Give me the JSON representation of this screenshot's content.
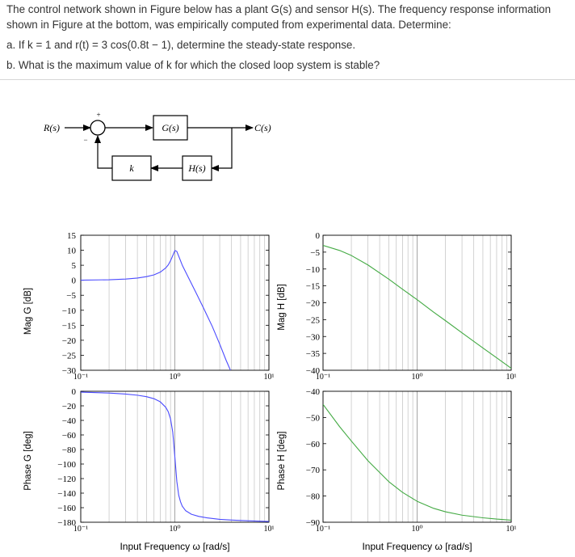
{
  "question": {
    "intro": "The control network shown in Figure below has a plant G(s) and sensor H(s). The frequency response information shown in Figure at the bottom, was empirically computed from experimental data. Determine:",
    "part_a": "a. If k = 1 and r(t) = 3 cos(0.8t − 1), determine the steady-state response.",
    "part_b": "b. What is the maximum value of k for which the closed loop system is stable?"
  },
  "block_diagram": {
    "input_label": "R(s)",
    "output_label": "C(s)",
    "plant_label": "G(s)",
    "sensor_label": "H(s)",
    "gain_label": "k",
    "plus_sign": "+",
    "minus_sign": "−"
  },
  "chart_data": [
    {
      "type": "line",
      "id": "mag-g",
      "ylabel": "Mag G [dB]",
      "xscale": "log",
      "xlim": [
        0.1,
        10
      ],
      "ylim": [
        -30,
        15
      ],
      "yticks": [
        15,
        10,
        5,
        0,
        -5,
        -10,
        -15,
        -20,
        -25,
        -30
      ],
      "xticks": [
        "10⁻¹",
        "10⁰",
        "10¹"
      ],
      "color": "#4b4bff",
      "x": [
        0.1,
        0.2,
        0.3,
        0.4,
        0.5,
        0.6,
        0.7,
        0.8,
        0.85,
        0.9,
        0.95,
        1.0,
        1.05,
        1.1,
        1.2,
        1.4,
        1.7,
        2.0,
        2.5,
        3.0,
        3.5,
        3.9
      ],
      "y": [
        0.04,
        0.17,
        0.4,
        0.73,
        1.2,
        1.8,
        2.7,
        4.1,
        5.1,
        6.5,
        8.2,
        9.9,
        9.6,
        8.0,
        5.0,
        0.8,
        -4.5,
        -9.0,
        -15.4,
        -21.3,
        -26.6,
        -30.0
      ]
    },
    {
      "type": "line",
      "id": "phase-g",
      "ylabel": "Phase G [deg]",
      "xscale": "log",
      "xlim": [
        0.1,
        10
      ],
      "ylim": [
        -180,
        0
      ],
      "yticks": [
        0,
        -20,
        -40,
        -60,
        -80,
        -100,
        -120,
        -140,
        -160,
        -180
      ],
      "xticks": [
        "10⁻¹",
        "10⁰",
        "10¹"
      ],
      "xlabel": "Input Frequency ω [rad/s]",
      "color": "#4b4bff",
      "x": [
        0.1,
        0.2,
        0.3,
        0.4,
        0.5,
        0.6,
        0.7,
        0.8,
        0.85,
        0.9,
        0.95,
        1.0,
        1.05,
        1.1,
        1.15,
        1.2,
        1.3,
        1.5,
        1.8,
        2.2,
        3.0,
        4.0,
        6.0,
        8.0,
        10.0
      ],
      "y": [
        -1.2,
        -2.4,
        -3.8,
        -5.4,
        -7.4,
        -10.2,
        -14.5,
        -22,
        -28,
        -38,
        -56,
        -90,
        -124,
        -143,
        -152,
        -158,
        -164,
        -169,
        -172,
        -174,
        -176,
        -177,
        -178,
        -178.5,
        -179
      ]
    },
    {
      "type": "line",
      "id": "mag-h",
      "ylabel": "Mag H [dB]",
      "xscale": "log",
      "xlim": [
        0.1,
        10
      ],
      "ylim": [
        -40,
        0
      ],
      "yticks": [
        0,
        -5,
        -10,
        -15,
        -20,
        -25,
        -30,
        -35,
        -40
      ],
      "xticks": [
        "10⁻¹",
        "10⁰",
        "10¹"
      ],
      "color": "#44aa44",
      "x": [
        0.1,
        0.15,
        0.2,
        0.3,
        0.5,
        0.7,
        1.0,
        1.5,
        2.0,
        3.0,
        5.0,
        7.0,
        10.0
      ],
      "y": [
        -3.0,
        -4.5,
        -6.0,
        -8.8,
        -13.0,
        -16.0,
        -19.1,
        -22.8,
        -25.3,
        -28.9,
        -33.4,
        -36.3,
        -39.4
      ]
    },
    {
      "type": "line",
      "id": "phase-h",
      "ylabel": "Phase H [deg]",
      "xscale": "log",
      "xlim": [
        0.1,
        10
      ],
      "ylim": [
        -90,
        -40
      ],
      "yticks": [
        -40,
        -50,
        -60,
        -70,
        -80,
        -90
      ],
      "xticks": [
        "10⁻¹",
        "10⁰",
        "10¹"
      ],
      "xlabel": "Input Frequency ω [rad/s]",
      "color": "#44aa44",
      "x": [
        0.1,
        0.15,
        0.2,
        0.3,
        0.5,
        0.7,
        1.0,
        1.5,
        2.0,
        3.0,
        5.0,
        7.0,
        10.0
      ],
      "y": [
        -45.0,
        -53.5,
        -59.0,
        -66.5,
        -74.5,
        -78.6,
        -82.0,
        -84.7,
        -86.0,
        -87.3,
        -88.3,
        -88.8,
        -89.2
      ]
    }
  ]
}
